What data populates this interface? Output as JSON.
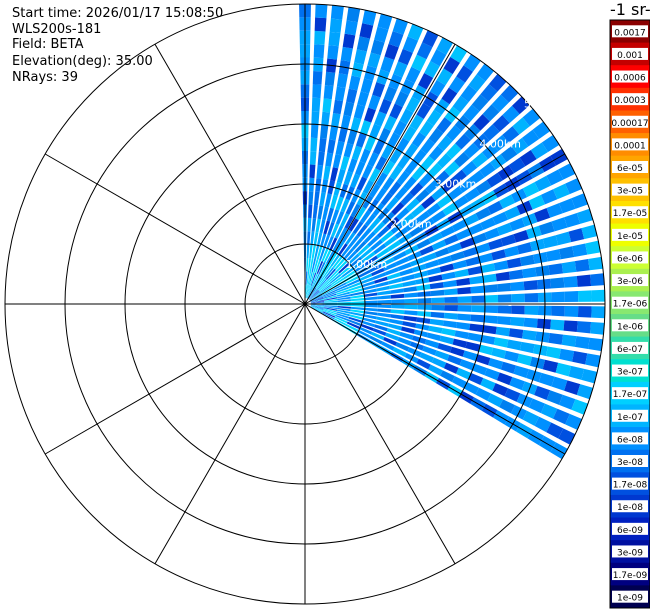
{
  "header": {
    "start_time": "Start time: 2026/01/17 15:08:50",
    "instrument": "WLS200s-181",
    "field": "Field: BETA",
    "elevation": "Elevation(deg): 35.00",
    "nrays": "NRays: 39"
  },
  "colorbar": {
    "title": "-1 sr-",
    "labels": [
      "0.0017",
      "0.001",
      "0.0006",
      "0.0003",
      "0.00017",
      "0.0001",
      "6e-05",
      "3e-05",
      "1.7e-05",
      "1e-05",
      "6e-06",
      "3e-06",
      "1.7e-06",
      "1e-06",
      "6e-07",
      "3e-07",
      "1.7e-07",
      "1e-07",
      "6e-08",
      "3e-08",
      "1.7e-08",
      "1e-08",
      "6e-09",
      "3e-09",
      "1.7e-09",
      "1e-09"
    ],
    "colors": [
      "#8b0000",
      "#c40000",
      "#ff0000",
      "#ff3000",
      "#ff6000",
      "#ff8c00",
      "#ffa500",
      "#ffc000",
      "#ffe000",
      "#eeff00",
      "#ccff33",
      "#aaf050",
      "#88e870",
      "#66dd88",
      "#33ddaa",
      "#00e0d0",
      "#00d0ff",
      "#00b4ff",
      "#0090ff",
      "#0070f0",
      "#0050e0",
      "#0038d0",
      "#0020c0",
      "#0010a0",
      "#000080",
      "#000050"
    ]
  },
  "chart_data": {
    "type": "polar-ppi",
    "field": "BETA",
    "elevation_deg": 35.0,
    "nrays": 39,
    "azimuth_range_deg": [
      0,
      120
    ],
    "range_ring_labels": [
      "1.00km",
      "2.00km",
      "3.00km",
      "4.00km",
      "5.00km"
    ],
    "range_ring_km": [
      1,
      2,
      3,
      4,
      5
    ],
    "max_range_km": 5.0,
    "spoke_azimuths_deg": [
      0,
      30,
      60,
      90,
      120,
      150,
      180,
      210,
      240,
      270,
      300,
      330
    ],
    "dominant_value_range": [
      "1e-08",
      "1.7e-07"
    ]
  }
}
